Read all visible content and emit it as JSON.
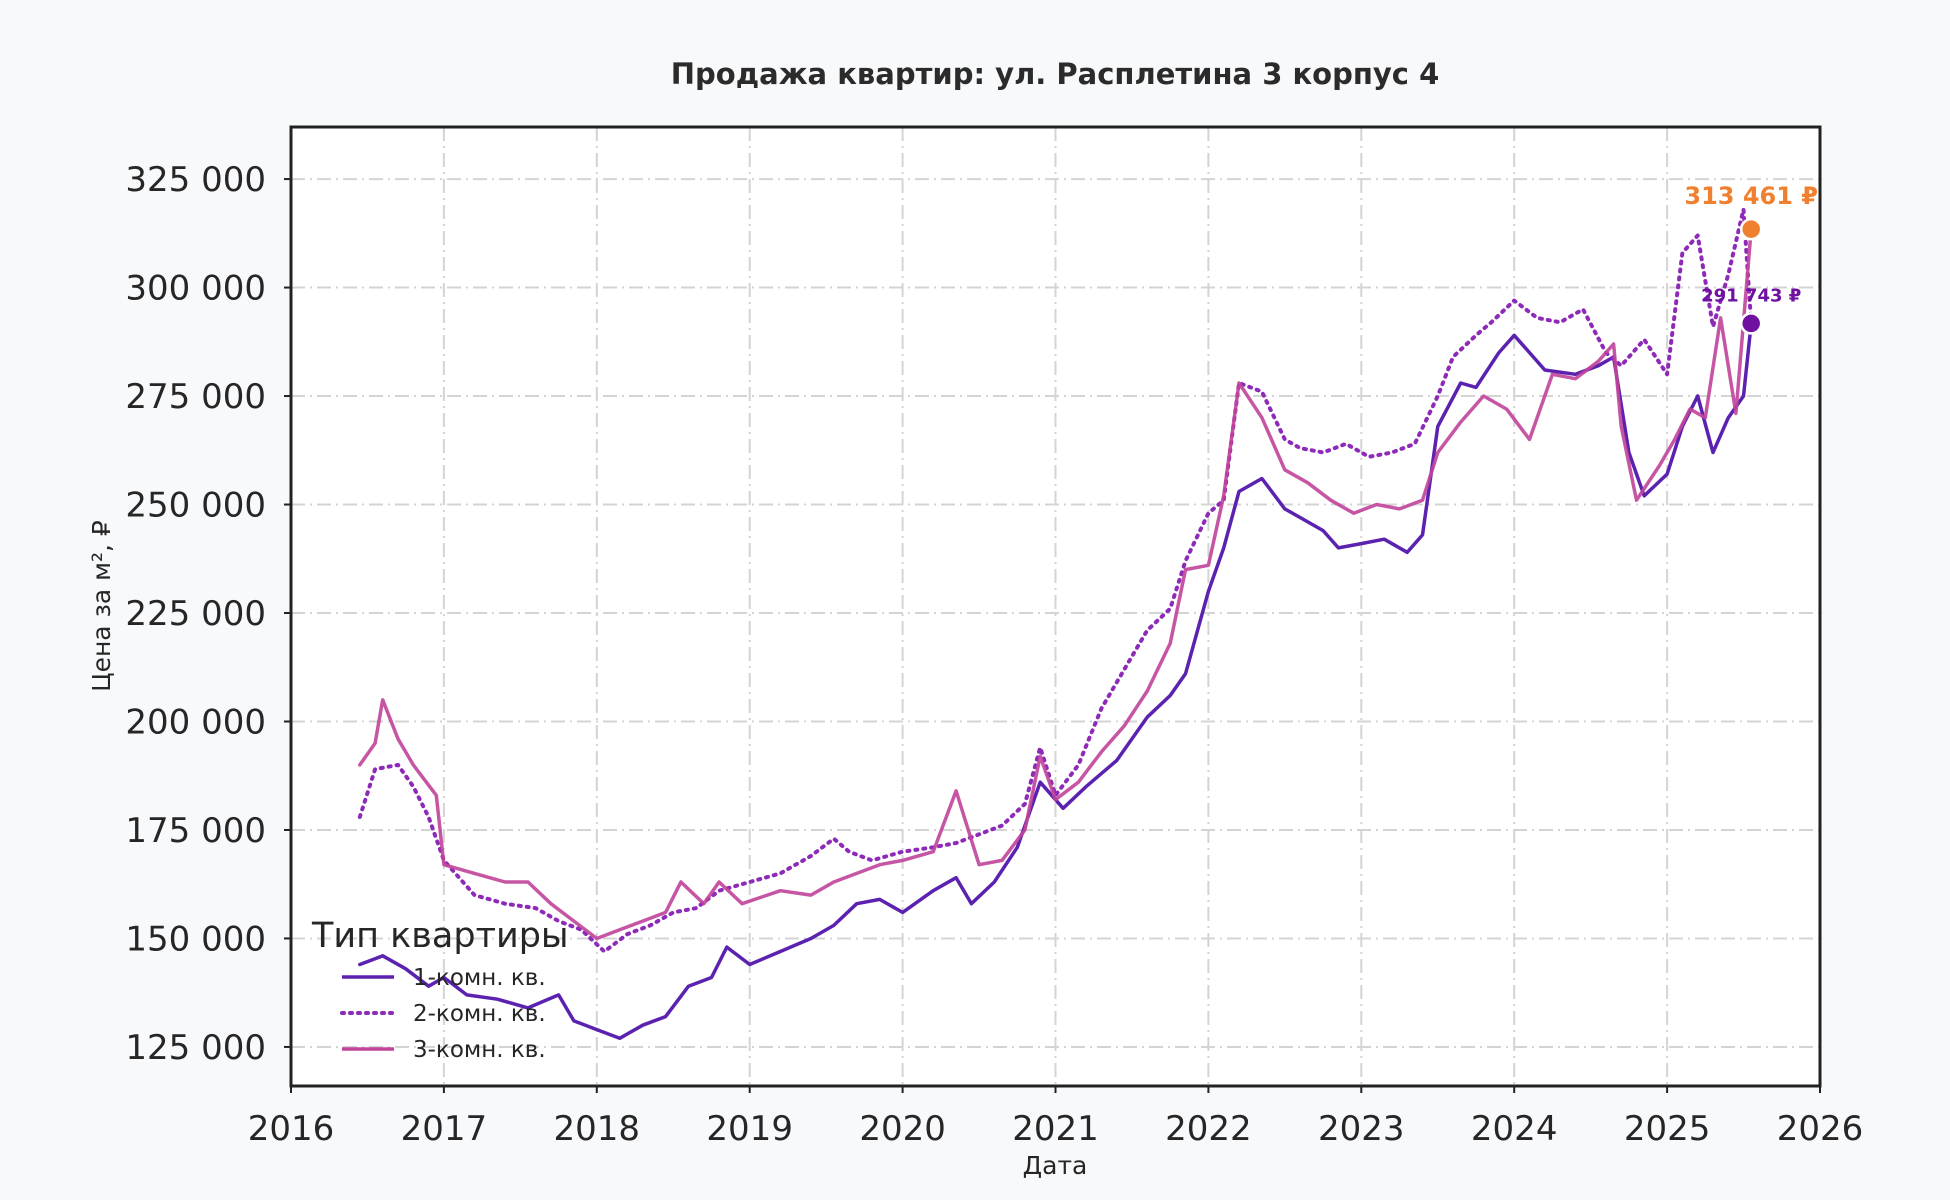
{
  "chart_data": {
    "type": "line",
    "title": "Продажа квартир: ул. Расплетина 3 корпус 4",
    "xlabel": "Дата",
    "ylabel": "Цена за м², ₽",
    "x_ticks": [
      "2016",
      "2017",
      "2018",
      "2019",
      "2020",
      "2021",
      "2022",
      "2023",
      "2024",
      "2025",
      "2026"
    ],
    "y_ticks": [
      "125 000",
      "150 000",
      "175 000",
      "200 000",
      "225 000",
      "250 000",
      "275 000",
      "300 000",
      "325 000"
    ],
    "xlim": [
      2016.0,
      2026.0
    ],
    "ylim": [
      116000,
      337000
    ],
    "grid": true,
    "legend": {
      "title": "Тип квартиры",
      "placement": "lower-left",
      "items": [
        "1-комн. кв.",
        "2-комн. кв.",
        "3-комн. кв."
      ]
    },
    "series": [
      {
        "name": "1-комн. кв.",
        "color": "#5b22b0",
        "style": "solid",
        "x": [
          2016.45,
          2016.6,
          2016.75,
          2016.9,
          2017.0,
          2017.15,
          2017.35,
          2017.55,
          2017.75,
          2017.85,
          2018.0,
          2018.15,
          2018.3,
          2018.45,
          2018.6,
          2018.75,
          2018.85,
          2019.0,
          2019.2,
          2019.4,
          2019.55,
          2019.7,
          2019.85,
          2020.0,
          2020.2,
          2020.35,
          2020.45,
          2020.6,
          2020.75,
          2020.9,
          2021.05,
          2021.2,
          2021.4,
          2021.6,
          2021.75,
          2021.85,
          2022.0,
          2022.1,
          2022.2,
          2022.35,
          2022.5,
          2022.6,
          2022.75,
          2022.85,
          2023.0,
          2023.15,
          2023.3,
          2023.4,
          2023.5,
          2023.65,
          2023.75,
          2023.9,
          2024.0,
          2024.2,
          2024.4,
          2024.55,
          2024.65,
          2024.75,
          2024.85,
          2025.0,
          2025.1,
          2025.2,
          2025.3,
          2025.4,
          2025.5,
          2025.55
        ],
        "y": [
          144000,
          146000,
          143000,
          139000,
          141000,
          137000,
          136000,
          134000,
          137000,
          131000,
          129000,
          127000,
          130000,
          132000,
          139000,
          141000,
          148000,
          144000,
          147000,
          150000,
          153000,
          158000,
          159000,
          156000,
          161000,
          164000,
          158000,
          163000,
          171000,
          186000,
          180000,
          185000,
          191000,
          201000,
          206000,
          211000,
          230000,
          240000,
          253000,
          256000,
          249000,
          247000,
          244000,
          240000,
          241000,
          242000,
          239000,
          243000,
          268000,
          278000,
          277000,
          285000,
          289000,
          281000,
          280000,
          282000,
          284000,
          262000,
          252000,
          257000,
          268000,
          275000,
          262000,
          270000,
          275000,
          291743
        ]
      },
      {
        "name": "2-комн. кв.",
        "color": "#8e2ab8",
        "style": "dotted",
        "x": [
          2016.45,
          2016.55,
          2016.7,
          2016.8,
          2016.9,
          2017.0,
          2017.2,
          2017.4,
          2017.6,
          2017.75,
          2017.9,
          2018.05,
          2018.2,
          2018.35,
          2018.5,
          2018.65,
          2018.8,
          2019.0,
          2019.2,
          2019.4,
          2019.55,
          2019.65,
          2019.8,
          2020.0,
          2020.2,
          2020.35,
          2020.5,
          2020.65,
          2020.8,
          2020.9,
          2021.0,
          2021.15,
          2021.3,
          2021.45,
          2021.6,
          2021.75,
          2021.85,
          2022.0,
          2022.1,
          2022.2,
          2022.35,
          2022.5,
          2022.6,
          2022.75,
          2022.9,
          2023.05,
          2023.2,
          2023.35,
          2023.5,
          2023.6,
          2023.75,
          2023.85,
          2024.0,
          2024.15,
          2024.3,
          2024.45,
          2024.6,
          2024.7,
          2024.85,
          2025.0,
          2025.1,
          2025.2,
          2025.3,
          2025.4,
          2025.5,
          2025.55
        ],
        "y": [
          178000,
          189000,
          190000,
          185000,
          178000,
          168000,
          160000,
          158000,
          157000,
          154000,
          152000,
          147000,
          151000,
          153000,
          156000,
          157000,
          161000,
          163000,
          165000,
          169000,
          173000,
          170000,
          168000,
          170000,
          171000,
          172000,
          174000,
          176000,
          181000,
          194000,
          183000,
          190000,
          203000,
          212000,
          221000,
          226000,
          237000,
          248000,
          251000,
          278000,
          276000,
          265000,
          263000,
          262000,
          264000,
          261000,
          262000,
          264000,
          275000,
          284000,
          289000,
          292000,
          297000,
          293000,
          292000,
          295000,
          285000,
          282000,
          288000,
          280000,
          308000,
          312000,
          291000,
          303000,
          318000,
          291743
        ]
      },
      {
        "name": "3-комн. кв.",
        "color": "#c0449a",
        "style": "solid",
        "x": [
          2016.45,
          2016.55,
          2016.6,
          2016.7,
          2016.8,
          2016.95,
          2017.0,
          2017.2,
          2017.4,
          2017.55,
          2017.7,
          2017.85,
          2018.0,
          2018.15,
          2018.3,
          2018.45,
          2018.55,
          2018.7,
          2018.8,
          2018.95,
          2019.2,
          2019.4,
          2019.55,
          2019.7,
          2019.85,
          2020.0,
          2020.2,
          2020.35,
          2020.5,
          2020.65,
          2020.8,
          2020.9,
          2021.0,
          2021.15,
          2021.3,
          2021.45,
          2021.6,
          2021.75,
          2021.85,
          2022.0,
          2022.1,
          2022.2,
          2022.35,
          2022.5,
          2022.65,
          2022.8,
          2022.95,
          2023.1,
          2023.25,
          2023.4,
          2023.5,
          2023.65,
          2023.8,
          2023.95,
          2024.1,
          2024.25,
          2024.4,
          2024.55,
          2024.65,
          2024.7,
          2024.8,
          2024.95,
          2025.05,
          2025.15,
          2025.25,
          2025.35,
          2025.45,
          2025.55
        ],
        "y": [
          190000,
          195000,
          205000,
          196000,
          190000,
          183000,
          167000,
          165000,
          163000,
          163000,
          158000,
          154000,
          150000,
          152000,
          154000,
          156000,
          163000,
          158000,
          163000,
          158000,
          161000,
          160000,
          163000,
          165000,
          167000,
          168000,
          170000,
          184000,
          167000,
          168000,
          175000,
          192000,
          182000,
          186000,
          193000,
          199000,
          207000,
          218000,
          235000,
          236000,
          252000,
          278000,
          270000,
          258000,
          255000,
          251000,
          248000,
          250000,
          249000,
          251000,
          262000,
          269000,
          275000,
          272000,
          265000,
          280000,
          279000,
          283000,
          287000,
          268000,
          251000,
          259000,
          265000,
          272000,
          270000,
          293000,
          271000,
          313461
        ]
      }
    ],
    "annotations": [
      {
        "text": "313 461 ₽",
        "x": 2025.55,
        "y": 313461,
        "color": "#f08030"
      },
      {
        "text": "291 743 ₽",
        "x": 2025.55,
        "y": 291743,
        "color": "#7010a0"
      }
    ]
  }
}
